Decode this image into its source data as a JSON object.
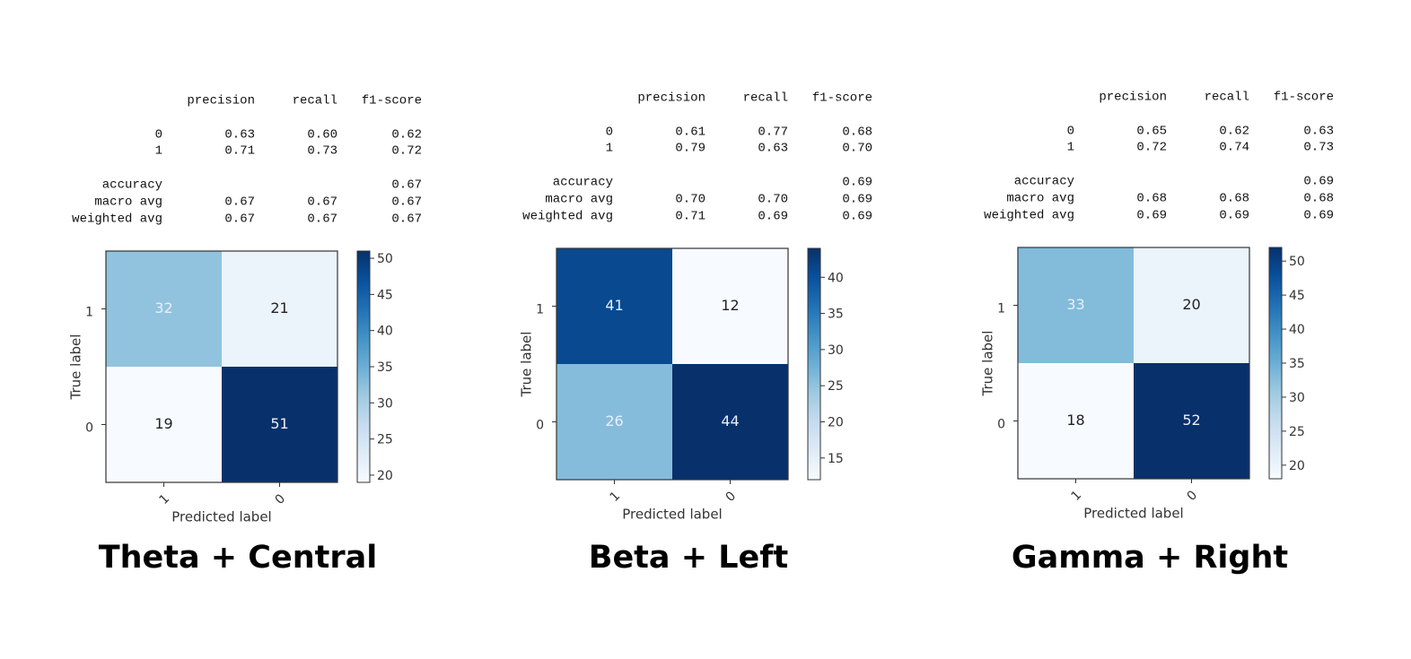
{
  "chart_data": [
    {
      "type": "heatmap",
      "title": "Theta + Central",
      "colormap": "Blues",
      "report": {
        "columns": [
          "precision",
          "recall",
          "f1-score"
        ],
        "rows": [
          {
            "label": "0",
            "cells": [
              "0.63",
              "0.60",
              "0.62"
            ]
          },
          {
            "label": "1",
            "cells": [
              "0.71",
              "0.73",
              "0.72"
            ]
          },
          {
            "label": "accuracy",
            "cells": [
              null,
              null,
              "0.67"
            ]
          },
          {
            "label": "macro avg",
            "cells": [
              "0.67",
              "0.67",
              "0.67"
            ]
          },
          {
            "label": "weighted avg",
            "cells": [
              "0.67",
              "0.67",
              "0.67"
            ]
          }
        ]
      },
      "x_label": "Predicted label",
      "y_label": "True label",
      "x_categories": [
        "1",
        "0"
      ],
      "y_categories": [
        "1",
        "0"
      ],
      "values": [
        [
          32,
          21
        ],
        [
          19,
          51
        ]
      ],
      "clim": [
        19,
        51
      ],
      "cticks": [
        20,
        25,
        30,
        35,
        40,
        45,
        50
      ]
    },
    {
      "type": "heatmap",
      "title": "Beta + Left",
      "colormap": "Blues",
      "report": {
        "columns": [
          "precision",
          "recall",
          "f1-score"
        ],
        "rows": [
          {
            "label": "0",
            "cells": [
              "0.61",
              "0.77",
              "0.68"
            ]
          },
          {
            "label": "1",
            "cells": [
              "0.79",
              "0.63",
              "0.70"
            ]
          },
          {
            "label": "accuracy",
            "cells": [
              null,
              null,
              "0.69"
            ]
          },
          {
            "label": "macro avg",
            "cells": [
              "0.70",
              "0.70",
              "0.69"
            ]
          },
          {
            "label": "weighted avg",
            "cells": [
              "0.71",
              "0.69",
              "0.69"
            ]
          }
        ]
      },
      "x_label": "Predicted label",
      "y_label": "True label",
      "x_categories": [
        "1",
        "0"
      ],
      "y_categories": [
        "1",
        "0"
      ],
      "values": [
        [
          41,
          12
        ],
        [
          26,
          44
        ]
      ],
      "clim": [
        12,
        44
      ],
      "cticks": [
        15,
        20,
        25,
        30,
        35,
        40
      ]
    },
    {
      "type": "heatmap",
      "title": "Gamma + Right",
      "colormap": "Blues",
      "report": {
        "columns": [
          "precision",
          "recall",
          "f1-score"
        ],
        "rows": [
          {
            "label": "0",
            "cells": [
              "0.65",
              "0.62",
              "0.63"
            ]
          },
          {
            "label": "1",
            "cells": [
              "0.72",
              "0.74",
              "0.73"
            ]
          },
          {
            "label": "accuracy",
            "cells": [
              null,
              null,
              "0.69"
            ]
          },
          {
            "label": "macro avg",
            "cells": [
              "0.68",
              "0.68",
              "0.68"
            ]
          },
          {
            "label": "weighted avg",
            "cells": [
              "0.69",
              "0.69",
              "0.69"
            ]
          }
        ]
      },
      "x_label": "Predicted label",
      "y_label": "True label",
      "x_categories": [
        "1",
        "0"
      ],
      "y_categories": [
        "1",
        "0"
      ],
      "values": [
        [
          33,
          20
        ],
        [
          18,
          52
        ]
      ],
      "clim": [
        18,
        52
      ],
      "cticks": [
        20,
        25,
        30,
        35,
        40,
        45,
        50
      ]
    }
  ]
}
